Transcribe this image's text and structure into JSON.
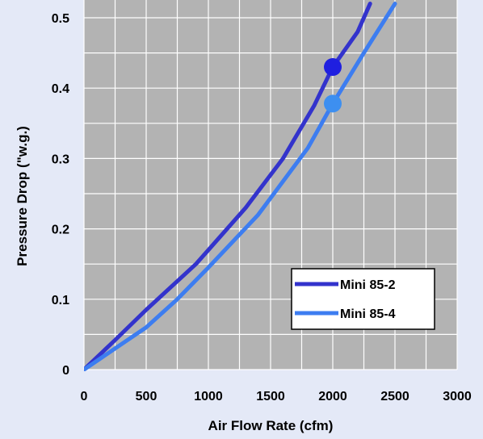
{
  "chart_data": {
    "type": "line",
    "title": "",
    "xlabel": "Air Flow Rate (cfm)",
    "ylabel": "Pressure Drop (\"w.g.)",
    "xlim": [
      0,
      3000
    ],
    "ylim": [
      0,
      0.5
    ],
    "x_ticks": [
      "0",
      "500",
      "1000",
      "1500",
      "2000",
      "2500",
      "3000"
    ],
    "y_ticks": [
      "0",
      "0.1",
      "0.2",
      "0.3",
      "0.4",
      "0.5"
    ],
    "grid": true,
    "background_color": "#e4e9f7",
    "plot_background_color": "#b3b3b3",
    "grid_color": "#ffffff",
    "legend_position": "bottom-right",
    "series": [
      {
        "name": "Mini 85-2",
        "color": "#3333cc",
        "x": [
          0,
          250,
          500,
          900,
          1300,
          1600,
          1850,
          2000,
          2200,
          2300
        ],
        "y": [
          0,
          0.042,
          0.085,
          0.15,
          0.23,
          0.3,
          0.375,
          0.43,
          0.48,
          0.52
        ],
        "marker": {
          "x": 2000,
          "y": 0.43,
          "color": "#1f1fe0"
        }
      },
      {
        "name": "Mini 85-4",
        "color": "#3d7df0",
        "x": [
          0,
          250,
          500,
          750,
          1000,
          1400,
          1800,
          2000,
          2250,
          2500
        ],
        "y": [
          0,
          0.03,
          0.06,
          0.1,
          0.145,
          0.22,
          0.315,
          0.378,
          0.45,
          0.52
        ],
        "marker": {
          "x": 2000,
          "y": 0.378,
          "color": "#3d8ff0"
        }
      }
    ]
  }
}
